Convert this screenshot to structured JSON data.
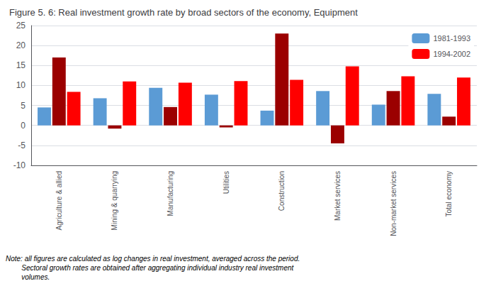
{
  "chart_data": {
    "type": "bar",
    "title": "Figure 5. 6: Real investment growth rate by broad sectors of the economy, Equipment",
    "categories": [
      "Agriculture & allied",
      "Mining & quarrying",
      "Manufacturing",
      "Utilities",
      "Construction",
      "Market services",
      "Non-market services",
      "Total economy"
    ],
    "series": [
      {
        "name": "1981-1993",
        "color": "#5b9bd5",
        "values": [
          4.5,
          6.8,
          9.4,
          7.7,
          3.7,
          8.6,
          5.2,
          7.9
        ]
      },
      {
        "color": "#9b0000",
        "values": [
          17.0,
          -0.8,
          4.6,
          -0.5,
          23.0,
          -4.5,
          8.6,
          2.2
        ]
      },
      {
        "name": "1994-2002",
        "color": "#ff0000",
        "values": [
          8.4,
          11.0,
          10.7,
          11.1,
          11.4,
          14.8,
          12.3,
          12.0
        ]
      }
    ],
    "ylim": [
      -10,
      25
    ],
    "yticks": [
      -10,
      -5,
      0,
      5,
      10,
      15,
      20,
      25
    ],
    "grid": true,
    "legend": "upper right",
    "annotations": [
      "Note: all figures are calculated as log changes in real investment, averaged across the period.",
      "        Sectoral growth rates are obtained after aggregating individual industry real investment",
      "        volumes."
    ]
  }
}
